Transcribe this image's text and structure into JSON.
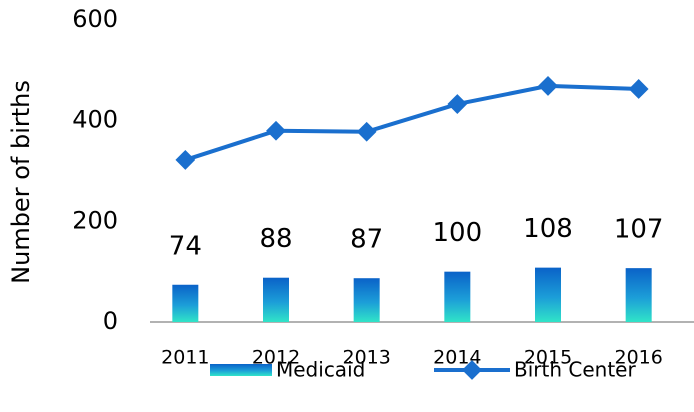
{
  "chart_data": {
    "type": "bar",
    "y_label": "Number of births",
    "categories": [
      "2011",
      "2012",
      "2013",
      "2014",
      "2015",
      "2016"
    ],
    "series": [
      {
        "name": "Medicaid",
        "type": "bar",
        "color": "#0066cc",
        "values": [
          74,
          88,
          87,
          100,
          108,
          107
        ]
      },
      {
        "name": "Birth Center",
        "type": "line",
        "color": "#1a6fce",
        "values": [
          322,
          380,
          378,
          433,
          469,
          463
        ]
      }
    ],
    "ylim": [
      0,
      600
    ],
    "yticks": [
      0,
      200,
      400,
      600
    ],
    "grid": false,
    "legend": "bottom"
  }
}
